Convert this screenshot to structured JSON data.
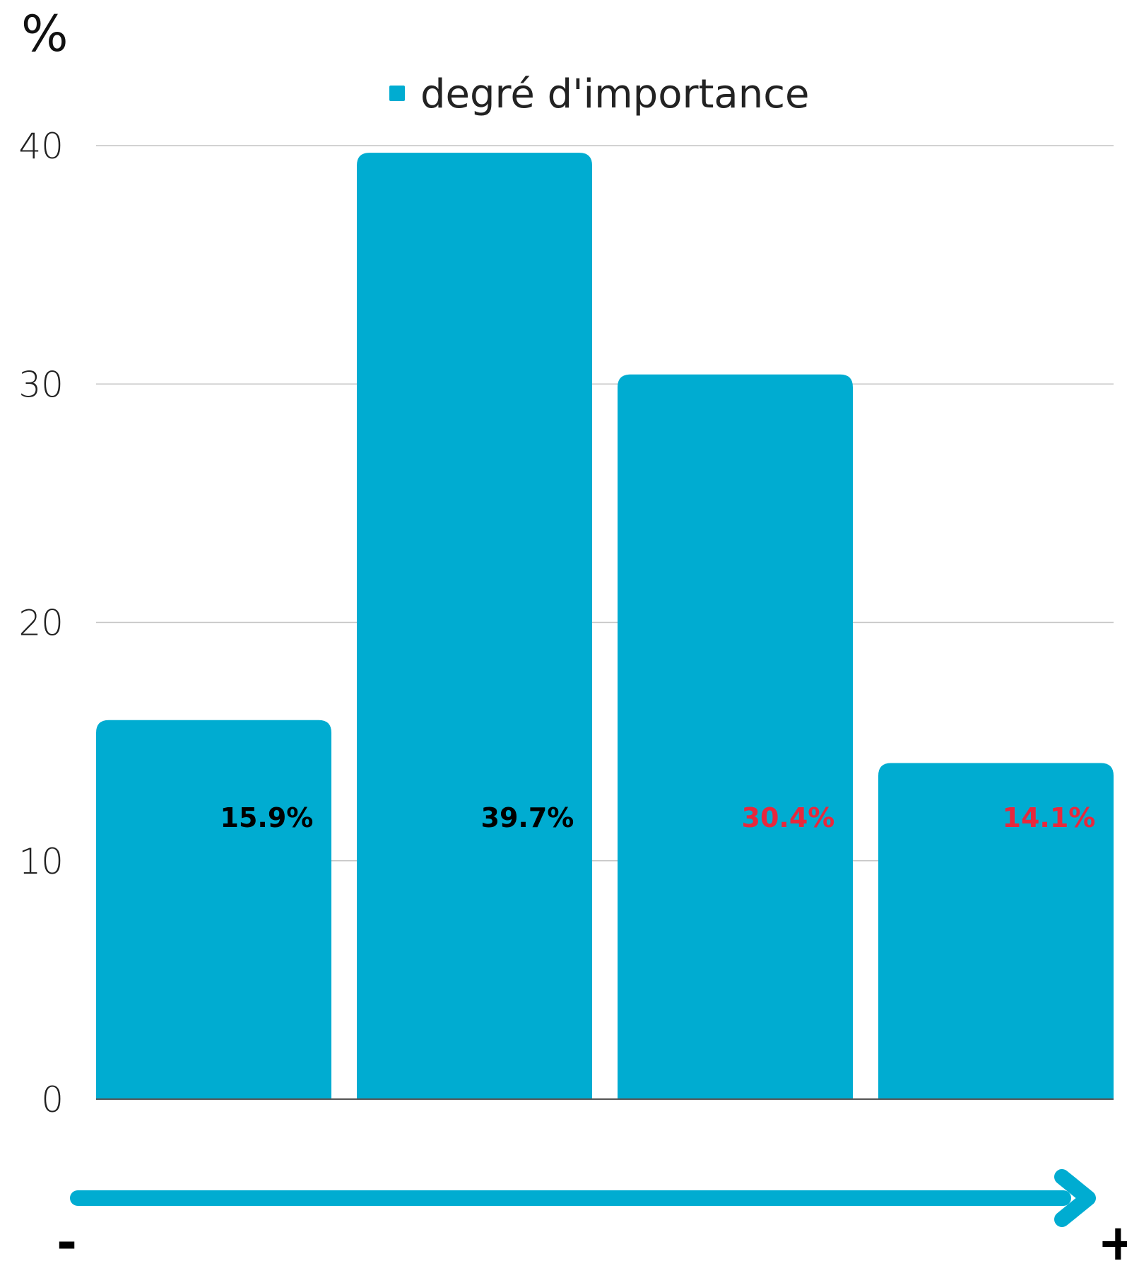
{
  "chart_data": {
    "type": "bar",
    "unit_label": "%",
    "categories": [
      "",
      "",
      "",
      ""
    ],
    "series": [
      {
        "name": "degré d'importance",
        "values": [
          15.9,
          39.7,
          30.4,
          14.1
        ]
      }
    ],
    "data_labels": [
      "15.9%",
      "39.7%",
      "30.4%",
      "14.1%"
    ],
    "data_label_colors": [
      "#000000",
      "#000000",
      "#e8283c",
      "#e8283c"
    ],
    "ylim": [
      0,
      40
    ],
    "yticks": [
      0,
      10,
      20,
      30,
      40
    ],
    "grid": true,
    "legend_position": "top-center",
    "bar_color": "#00acd1",
    "scale_arrow": {
      "min_label": "-",
      "max_label": "+"
    }
  }
}
